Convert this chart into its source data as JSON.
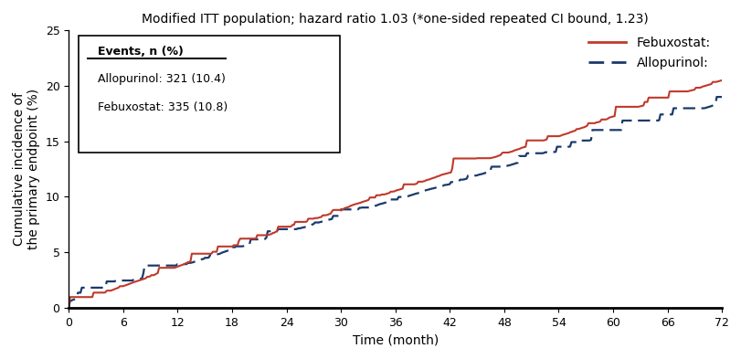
{
  "title": "Modified ITT population; hazard ratio 1.03 (*one-sided repeated CI bound, 1.23)",
  "xlabel": "Time (month)",
  "ylabel": "Cumulative incidence of\nthe primary endpoint (%)",
  "xlim": [
    0,
    72
  ],
  "ylim": [
    0,
    25
  ],
  "xticks": [
    0,
    6,
    12,
    18,
    24,
    30,
    36,
    42,
    48,
    54,
    60,
    66,
    72
  ],
  "yticks": [
    0,
    5,
    10,
    15,
    20,
    25
  ],
  "febuxostat_color": "#c0392b",
  "allopurinol_color": "#1a3a6b",
  "box_text_title": "Events, n (%)",
  "box_text_line1": "Allopurinol: 321 (10.4)",
  "box_text_line2": "Febuxostat: 335 (10.8)",
  "background_color": "#ffffff",
  "title_fontsize": 10,
  "axis_fontsize": 10,
  "legend_fontsize": 10
}
